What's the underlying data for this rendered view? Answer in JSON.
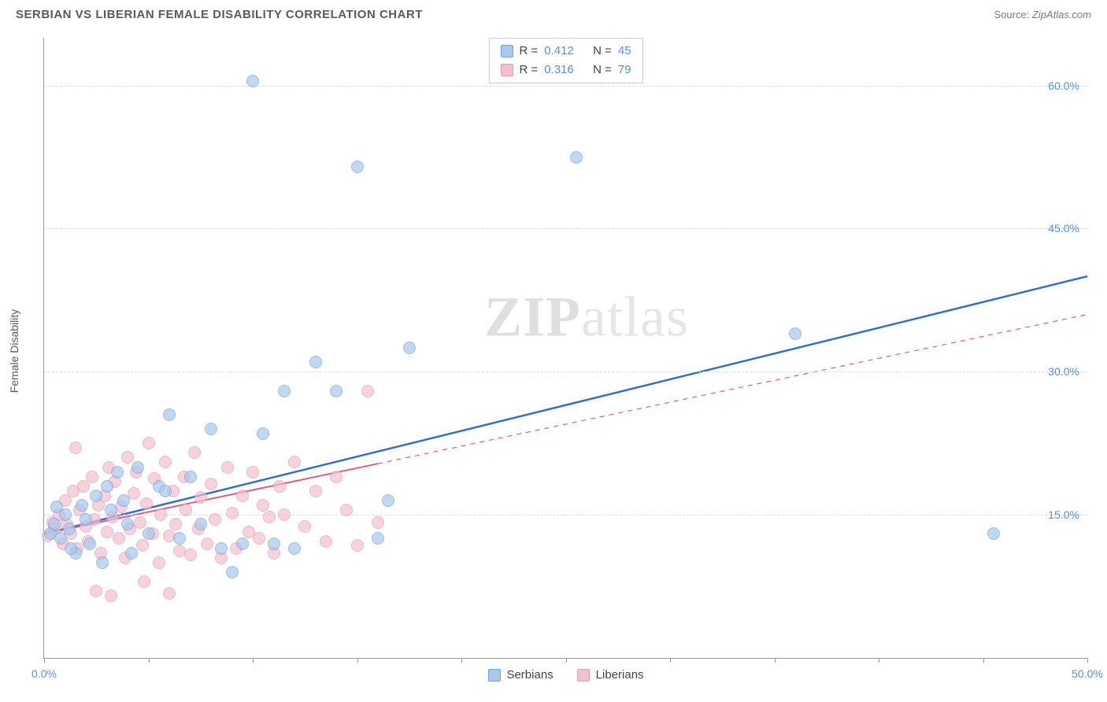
{
  "header": {
    "title": "SERBIAN VS LIBERIAN FEMALE DISABILITY CORRELATION CHART",
    "source_prefix": "Source: ",
    "source_name": "ZipAtlas.com"
  },
  "chart": {
    "type": "scatter",
    "y_axis_label": "Female Disability",
    "xlim": [
      0,
      50
    ],
    "ylim": [
      0,
      65
    ],
    "x_ticks": [
      0,
      5,
      10,
      15,
      20,
      25,
      30,
      35,
      40,
      45,
      50
    ],
    "x_tick_labels": {
      "0": "0.0%",
      "50": "50.0%"
    },
    "y_gridlines": [
      15,
      30,
      45,
      60
    ],
    "y_tick_labels": {
      "15": "15.0%",
      "30": "30.0%",
      "45": "45.0%",
      "60": "60.0%"
    },
    "background_color": "#ffffff",
    "grid_color": "#dddddd",
    "axis_color": "#999999",
    "tick_label_color": "#5b8fd6",
    "marker_radius": 8,
    "marker_border_width": 1.5,
    "marker_fill_opacity": 0.35,
    "watermark": {
      "text_bold": "ZIP",
      "text_rest": "atlas"
    },
    "series": [
      {
        "name": "Serbians",
        "color": "#6fa4e0",
        "fill": "#a9c8ec",
        "R": "0.412",
        "N": "45",
        "trend": {
          "x1": 0,
          "y1": 13.0,
          "x2": 50,
          "y2": 40.0,
          "solid_until_x": 50,
          "line_color": "#2f6fc8",
          "line_width": 2.5
        },
        "points": [
          [
            0.3,
            13
          ],
          [
            0.5,
            14
          ],
          [
            0.8,
            12.5
          ],
          [
            1.0,
            15
          ],
          [
            1.2,
            13.5
          ],
          [
            1.5,
            11
          ],
          [
            1.8,
            16
          ],
          [
            2.0,
            14.5
          ],
          [
            2.2,
            12
          ],
          [
            2.5,
            17
          ],
          [
            3.0,
            18
          ],
          [
            3.2,
            15.5
          ],
          [
            3.5,
            19.5
          ],
          [
            4.0,
            14
          ],
          [
            4.2,
            11
          ],
          [
            4.5,
            20
          ],
          [
            5.0,
            13
          ],
          [
            5.5,
            18
          ],
          [
            6.0,
            25.5
          ],
          [
            6.5,
            12.5
          ],
          [
            7.0,
            19
          ],
          [
            7.5,
            14
          ],
          [
            8.0,
            24
          ],
          [
            8.5,
            11.5
          ],
          [
            9.0,
            9
          ],
          [
            9.5,
            12
          ],
          [
            10.0,
            60.5
          ],
          [
            10.5,
            23.5
          ],
          [
            11.0,
            12
          ],
          [
            11.5,
            28
          ],
          [
            12.0,
            11.5
          ],
          [
            13.0,
            31
          ],
          [
            14.0,
            28
          ],
          [
            15.0,
            51.5
          ],
          [
            16.0,
            12.5
          ],
          [
            16.5,
            16.5
          ],
          [
            17.5,
            32.5
          ],
          [
            25.5,
            52.5
          ],
          [
            36.0,
            34
          ],
          [
            45.5,
            13
          ],
          [
            2.8,
            10
          ],
          [
            3.8,
            16.5
          ],
          [
            1.3,
            11.5
          ],
          [
            0.6,
            15.8
          ],
          [
            5.8,
            17.5
          ]
        ]
      },
      {
        "name": "Liberians",
        "color": "#e89bb0",
        "fill": "#f3c0cf",
        "R": "0.316",
        "N": "79",
        "trend": {
          "x1": 0,
          "y1": 13.0,
          "x2": 50,
          "y2": 36.0,
          "solid_until_x": 16,
          "line_color": "#e45a87",
          "line_width": 2,
          "dash": "6,6"
        },
        "points": [
          [
            0.2,
            12.8
          ],
          [
            0.4,
            14.2
          ],
          [
            0.5,
            13.5
          ],
          [
            0.7,
            15
          ],
          [
            0.9,
            12
          ],
          [
            1.0,
            16.5
          ],
          [
            1.1,
            14
          ],
          [
            1.3,
            13
          ],
          [
            1.4,
            17.5
          ],
          [
            1.6,
            11.5
          ],
          [
            1.7,
            15.5
          ],
          [
            1.9,
            18
          ],
          [
            2.0,
            13.8
          ],
          [
            2.1,
            12.2
          ],
          [
            2.3,
            19
          ],
          [
            2.4,
            14.5
          ],
          [
            2.6,
            16
          ],
          [
            2.7,
            11
          ],
          [
            2.9,
            17
          ],
          [
            3.0,
            13.2
          ],
          [
            3.1,
            20
          ],
          [
            3.3,
            14.8
          ],
          [
            3.4,
            18.5
          ],
          [
            3.6,
            12.5
          ],
          [
            3.7,
            15.8
          ],
          [
            3.9,
            10.5
          ],
          [
            4.0,
            21
          ],
          [
            4.1,
            13.5
          ],
          [
            4.3,
            17.2
          ],
          [
            4.4,
            19.5
          ],
          [
            4.6,
            14.2
          ],
          [
            4.7,
            11.8
          ],
          [
            4.9,
            16.2
          ],
          [
            5.0,
            22.5
          ],
          [
            5.2,
            13
          ],
          [
            5.3,
            18.8
          ],
          [
            5.5,
            10
          ],
          [
            5.6,
            15
          ],
          [
            5.8,
            20.5
          ],
          [
            6.0,
            12.8
          ],
          [
            6.2,
            17.5
          ],
          [
            6.3,
            14
          ],
          [
            6.5,
            11.2
          ],
          [
            6.7,
            19
          ],
          [
            6.8,
            15.5
          ],
          [
            7.0,
            10.8
          ],
          [
            7.2,
            21.5
          ],
          [
            7.4,
            13.5
          ],
          [
            7.5,
            16.8
          ],
          [
            7.8,
            12
          ],
          [
            8.0,
            18.2
          ],
          [
            8.2,
            14.5
          ],
          [
            8.5,
            10.5
          ],
          [
            8.8,
            20
          ],
          [
            9.0,
            15.2
          ],
          [
            9.2,
            11.5
          ],
          [
            9.5,
            17
          ],
          [
            9.8,
            13.2
          ],
          [
            10.0,
            19.5
          ],
          [
            10.3,
            12.5
          ],
          [
            10.5,
            16
          ],
          [
            10.8,
            14.8
          ],
          [
            11.0,
            11
          ],
          [
            11.3,
            18
          ],
          [
            11.5,
            15
          ],
          [
            12.0,
            20.5
          ],
          [
            12.5,
            13.8
          ],
          [
            13.0,
            17.5
          ],
          [
            13.5,
            12.2
          ],
          [
            14.0,
            19
          ],
          [
            14.5,
            15.5
          ],
          [
            15.0,
            11.8
          ],
          [
            15.5,
            28
          ],
          [
            16.0,
            14.2
          ],
          [
            2.5,
            7
          ],
          [
            3.2,
            6.5
          ],
          [
            4.8,
            8
          ],
          [
            6.0,
            6.8
          ],
          [
            1.5,
            22
          ]
        ]
      }
    ],
    "stats_box": {
      "r_label": "R =",
      "n_label": "N ="
    },
    "legend_labels": [
      "Serbians",
      "Liberians"
    ]
  }
}
